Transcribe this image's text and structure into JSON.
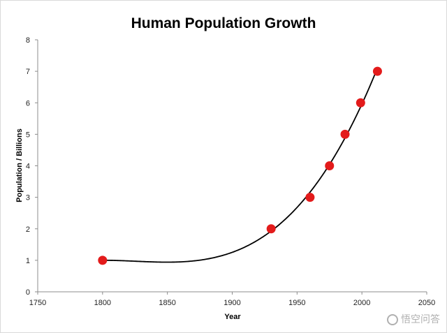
{
  "watermark": {
    "text": "悟空问答",
    "icon": "wukong-logo-icon"
  },
  "chart_data": {
    "type": "scatter",
    "title": "Human Population Growth",
    "xlabel": "Year",
    "ylabel": "Population / Billions",
    "xlim": [
      1750,
      2050
    ],
    "ylim": [
      0,
      8
    ],
    "xticks": [
      1750,
      1800,
      1850,
      1900,
      1950,
      2000,
      2050
    ],
    "yticks": [
      0,
      1,
      2,
      3,
      4,
      5,
      6,
      7,
      8
    ],
    "grid": false,
    "legend": "none",
    "trendline": true,
    "marker_color": "#e31b1b",
    "line_color": "#000000",
    "series": [
      {
        "x": [
          1800,
          1930,
          1960,
          1975,
          1987,
          1999,
          2012
        ],
        "y": [
          1,
          2,
          3,
          4,
          5,
          6,
          7
        ]
      }
    ]
  }
}
